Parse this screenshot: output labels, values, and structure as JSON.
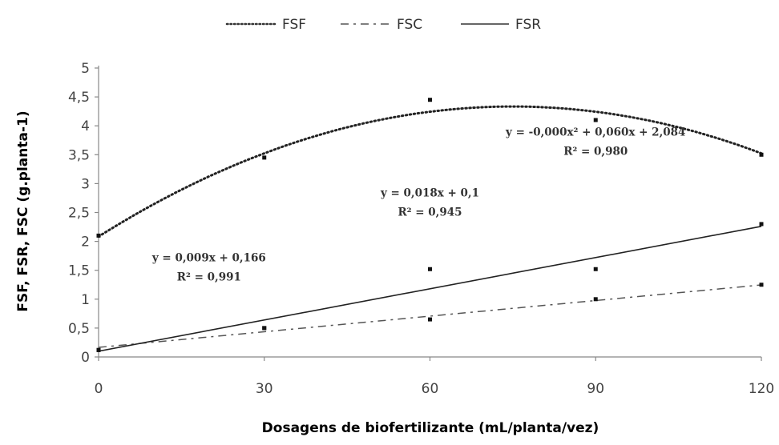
{
  "chart_data": {
    "type": "scatter",
    "title": "",
    "xlabel": "Dosagens de biofertilizante (mL/planta/vez)",
    "ylabel": "FSF, FSR, FSC (g.planta-1)",
    "xlim": [
      0,
      120
    ],
    "ylim": [
      0,
      5
    ],
    "x_ticks": [
      "0",
      "30",
      "60",
      "90",
      "120"
    ],
    "y_ticks": [
      "0",
      "0,5",
      "1",
      "1,5",
      "2",
      "2,5",
      "3",
      "3,5",
      "4",
      "4,5",
      "5"
    ],
    "grid": false,
    "legend_position": "top",
    "series": [
      {
        "name": "FSF",
        "line_style": "dotted",
        "points": [
          [
            0,
            2.1
          ],
          [
            30,
            3.45
          ],
          [
            60,
            4.45
          ],
          [
            90,
            4.1
          ],
          [
            120,
            3.5
          ]
        ],
        "trend_type": "polynomial",
        "coefficients": [
          -0.0004,
          0.06,
          2.084
        ]
      },
      {
        "name": "FSC",
        "line_style": "dashdot",
        "points": [
          [
            0,
            0.12
          ],
          [
            30,
            0.5
          ],
          [
            60,
            0.65
          ],
          [
            90,
            1.0
          ],
          [
            120,
            1.25
          ]
        ],
        "trend_type": "linear",
        "coefficients": [
          0.009,
          0.166
        ]
      },
      {
        "name": "FSR",
        "line_style": "solid",
        "points": [
          [
            0,
            0.12
          ],
          [
            30,
            0.5
          ],
          [
            60,
            1.52
          ],
          [
            90,
            1.52
          ],
          [
            120,
            2.3
          ]
        ],
        "trend_type": "linear",
        "coefficients": [
          0.018,
          0.1
        ]
      }
    ],
    "annotations": [
      {
        "eq": "y = -0,000x² + 0,060x + 2,084",
        "r2": "R² = 0,980",
        "x": 90,
        "y": 3.8
      },
      {
        "eq": "y = 0,018x + 0,1",
        "r2": "R² = 0,945",
        "x": 60,
        "y": 2.75
      },
      {
        "eq": "y = 0,009x + 0,166",
        "r2": "R² = 0,991",
        "x": 20,
        "y": 1.63
      }
    ]
  }
}
